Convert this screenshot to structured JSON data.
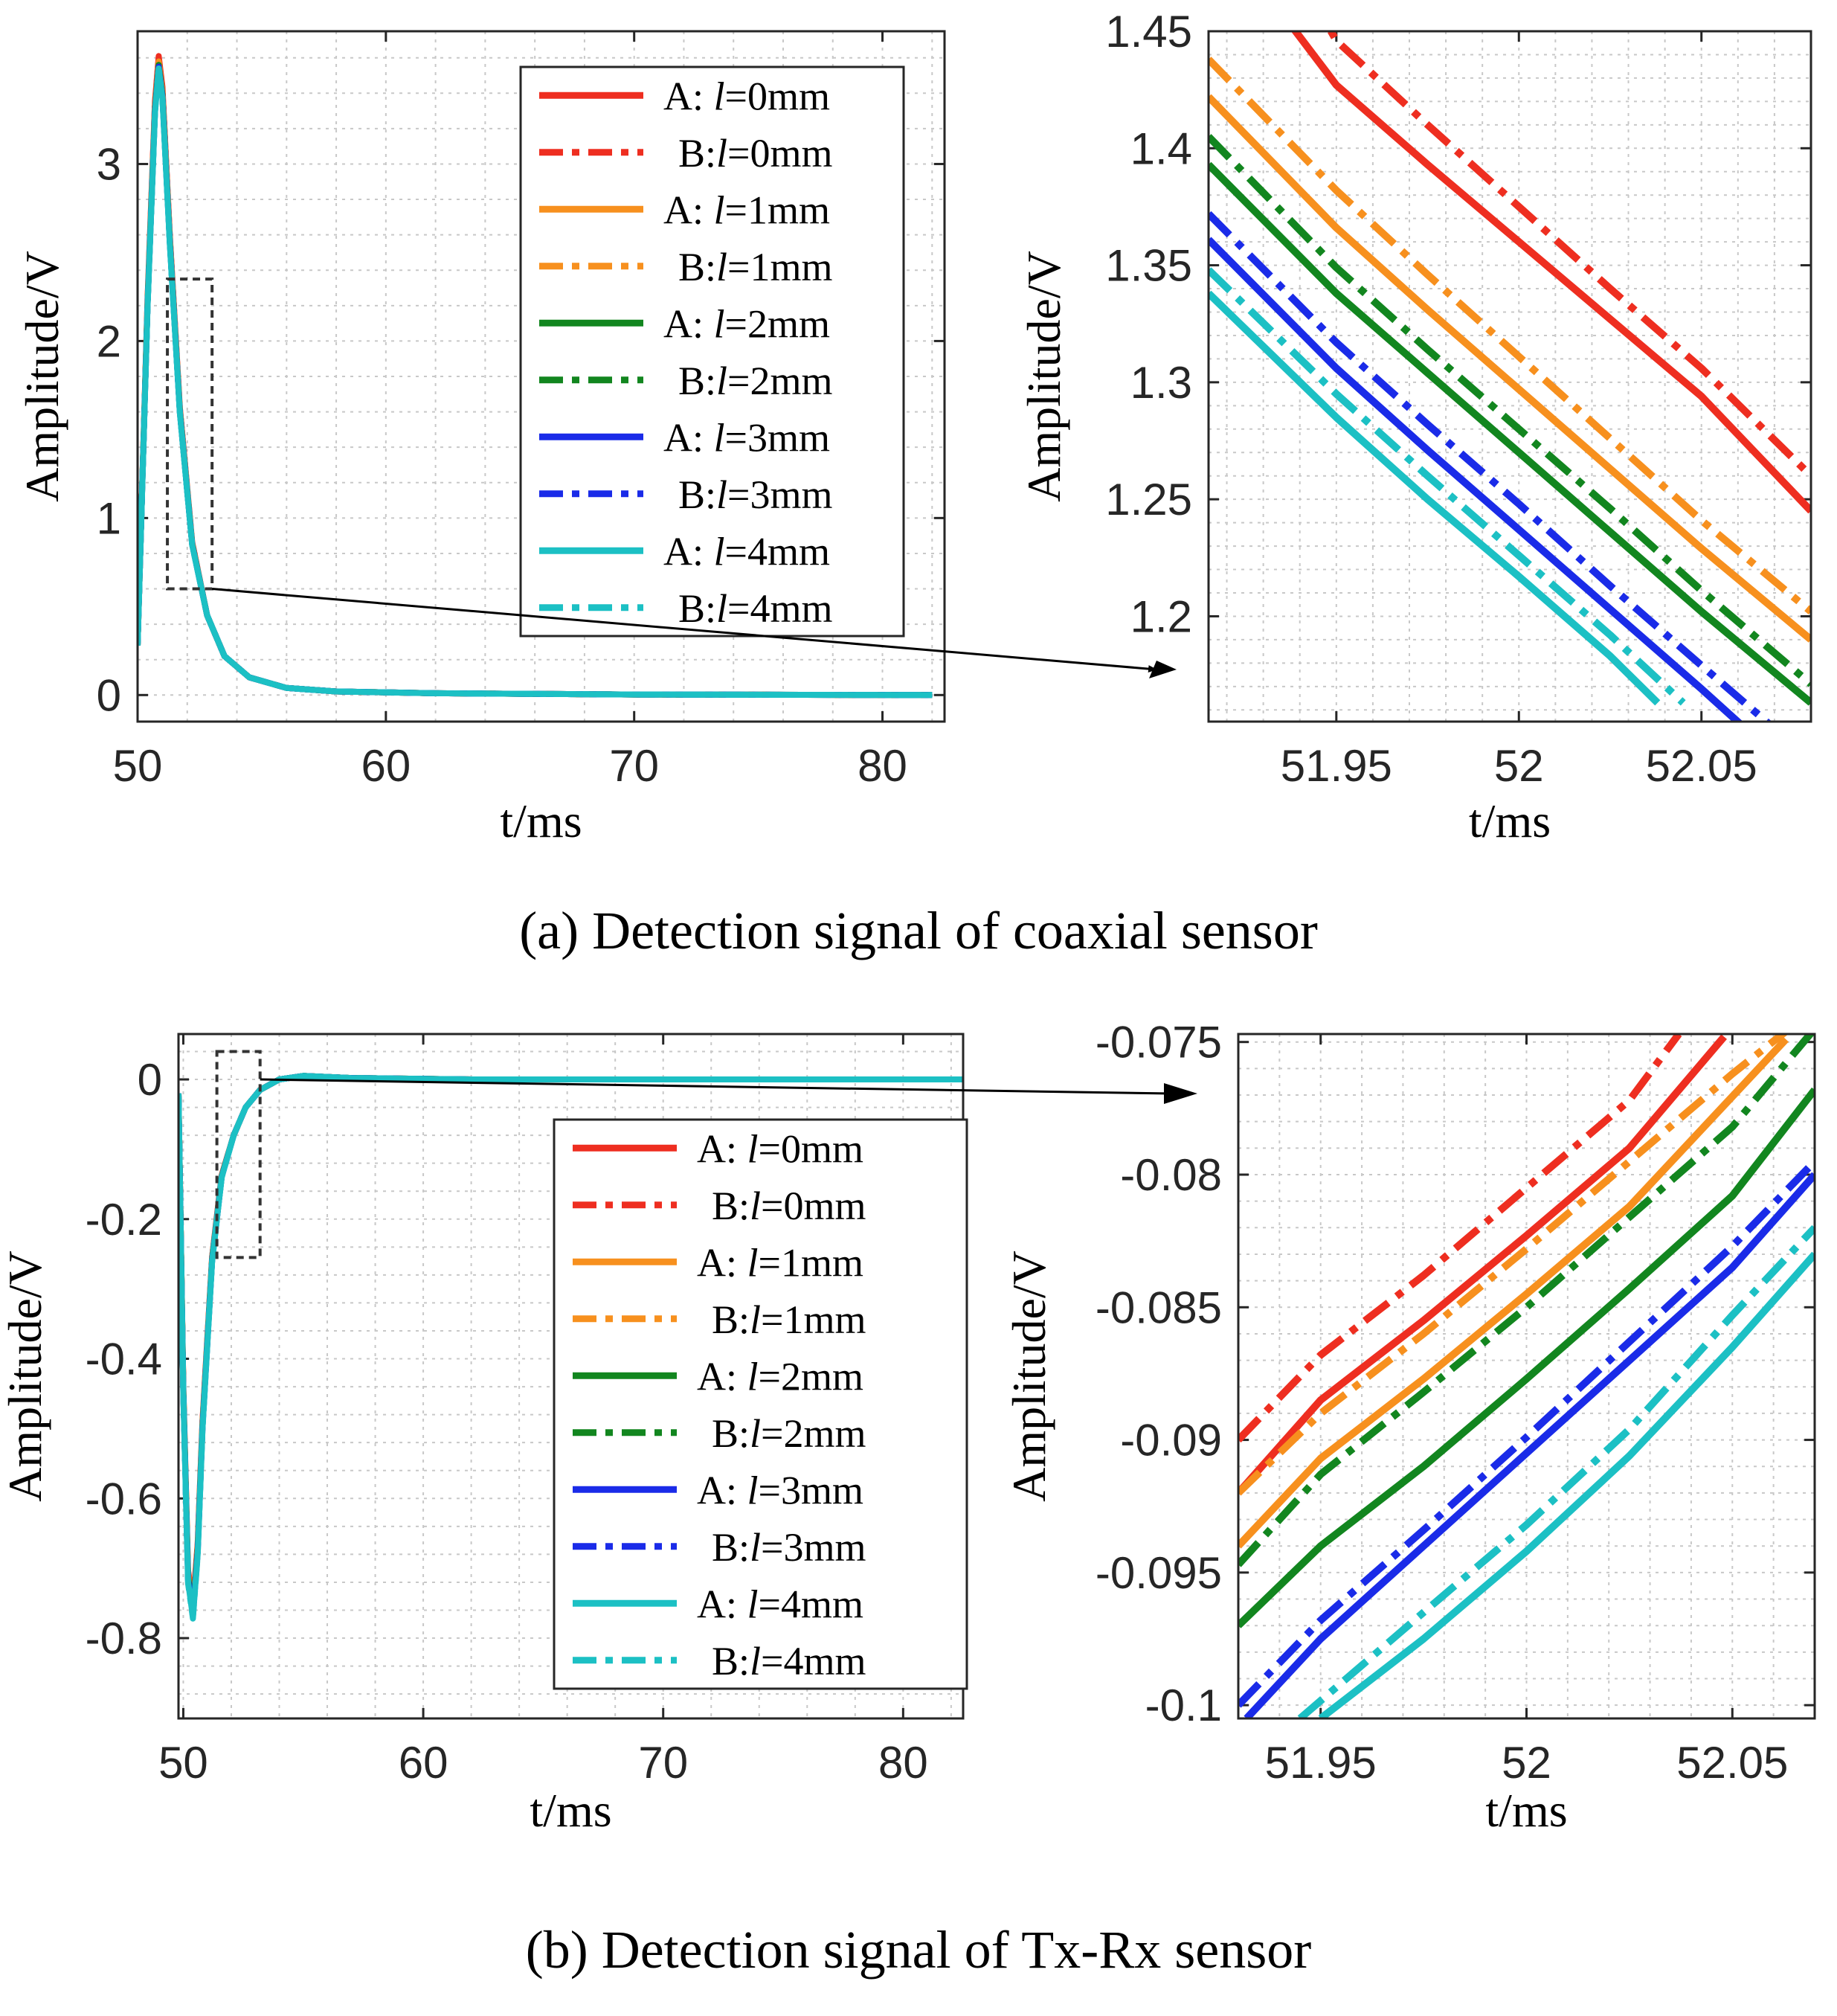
{
  "colors": {
    "l0": "#ee2e20",
    "l1": "#f7901e",
    "l2": "#12861f",
    "l3": "#1a2be8",
    "l4": "#1cc0c4"
  },
  "captions": {
    "a": "(a) Detection signal of coaxial sensor",
    "b": "(b) Detection signal of Tx-Rx sensor"
  },
  "legend": {
    "labels": [
      "A: l=0mm",
      "B:l=0mm",
      "A: l=1mm",
      "B:l=1mm",
      "A: l=2mm",
      "B:l=2mm",
      "A: l=3mm",
      "B:l=3mm",
      "A: l=4mm",
      "B:l=4mm"
    ],
    "prefixes": [
      "A: ",
      "B:",
      "A: ",
      "B:",
      "A: ",
      "B:",
      "A: ",
      "B:",
      "A: ",
      "B:"
    ],
    "vars": [
      "l",
      "l",
      "l",
      "l",
      "l",
      "l",
      "l",
      "l",
      "l",
      "l"
    ],
    "suffixes": [
      "=0mm",
      "=0mm",
      "=1mm",
      "=1mm",
      "=2mm",
      "=2mm",
      "=3mm",
      "=3mm",
      "=4mm",
      "=4mm"
    ]
  },
  "chart_data": [
    {
      "id": "a-main",
      "type": "line",
      "xlabel": "t/ms",
      "ylabel": "Amplitude/V",
      "xlim": [
        50,
        82.5
      ],
      "ylim": [
        -0.15,
        3.75
      ],
      "xticks": [
        50,
        60,
        70,
        80
      ],
      "yticks": [
        0,
        1,
        2,
        3
      ],
      "xtick_labels": [
        "50",
        "60",
        "70",
        "80"
      ],
      "ytick_labels": [
        "0",
        "1",
        "2",
        "3"
      ],
      "grid": true,
      "legend": "top-right",
      "zoom_box": {
        "x": [
          51.2,
          53.0
        ],
        "y": [
          0.6,
          2.35
        ]
      },
      "series_shape": {
        "x": [
          50.0,
          50.4,
          50.7,
          50.85,
          51.0,
          51.3,
          51.7,
          52.2,
          52.8,
          53.5,
          54.5,
          56,
          58,
          62,
          70,
          82
        ],
        "y": [
          0.28,
          2.2,
          3.3,
          3.55,
          3.38,
          2.55,
          1.6,
          0.85,
          0.45,
          0.22,
          0.1,
          0.04,
          0.02,
          0.01,
          0.003,
          0.0
        ]
      },
      "series": [
        {
          "name": "A: l=0mm",
          "peak": 3.61
        },
        {
          "name": "B:l=0mm",
          "peak": 3.6
        },
        {
          "name": "A: l=1mm",
          "peak": 3.58
        },
        {
          "name": "B:l=1mm",
          "peak": 3.57
        },
        {
          "name": "A: l=2mm",
          "peak": 3.56
        },
        {
          "name": "B:l=2mm",
          "peak": 3.56
        },
        {
          "name": "A: l=3mm",
          "peak": 3.55
        },
        {
          "name": "B:l=3mm",
          "peak": 3.55
        },
        {
          "name": "A: l=4mm",
          "peak": 3.54
        },
        {
          "name": "B:l=4mm",
          "peak": 3.54
        }
      ]
    },
    {
      "id": "a-zoom",
      "type": "line",
      "xlabel": "t/ms",
      "ylabel": "Amplitude/V",
      "xlim": [
        51.915,
        52.08
      ],
      "ylim": [
        1.155,
        1.45
      ],
      "xticks": [
        51.95,
        52,
        52.05
      ],
      "yticks": [
        1.2,
        1.25,
        1.3,
        1.35,
        1.4,
        1.45
      ],
      "xtick_labels": [
        "51.95",
        "52",
        "52.05"
      ],
      "ytick_labels": [
        "1.2",
        "1.25",
        "1.3",
        "1.35",
        "1.4",
        "1.45"
      ],
      "grid": true,
      "series": [
        {
          "name": "A: l=0mm",
          "x": [
            51.933,
            51.95,
            51.975,
            52.0,
            52.025,
            52.05,
            52.08
          ],
          "y": [
            1.462,
            1.427,
            1.393,
            1.36,
            1.327,
            1.294,
            1.245
          ]
        },
        {
          "name": "B:l=0mm",
          "x": [
            51.943,
            51.95,
            51.975,
            52.0,
            52.025,
            52.05,
            52.08
          ],
          "y": [
            1.465,
            1.446,
            1.41,
            1.375,
            1.34,
            1.306,
            1.26
          ]
        },
        {
          "name": "A: l=1mm",
          "x": [
            51.915,
            51.95,
            51.975,
            52.0,
            52.025,
            52.05,
            52.08
          ],
          "y": [
            1.422,
            1.366,
            1.331,
            1.297,
            1.263,
            1.229,
            1.19
          ]
        },
        {
          "name": "B:l=1mm",
          "x": [
            51.915,
            51.95,
            51.975,
            52.0,
            52.025,
            52.05,
            52.08
          ],
          "y": [
            1.438,
            1.382,
            1.346,
            1.311,
            1.276,
            1.241,
            1.202
          ]
        },
        {
          "name": "A: l=2mm",
          "x": [
            51.915,
            51.95,
            51.975,
            52.0,
            52.025,
            52.05,
            52.08
          ],
          "y": [
            1.393,
            1.338,
            1.304,
            1.27,
            1.236,
            1.202,
            1.163
          ]
        },
        {
          "name": "B:l=2mm",
          "x": [
            51.915,
            51.95,
            51.975,
            52.0,
            52.025,
            52.05,
            52.08
          ],
          "y": [
            1.405,
            1.349,
            1.314,
            1.28,
            1.246,
            1.211,
            1.171
          ]
        },
        {
          "name": "A: l=3mm",
          "x": [
            51.915,
            51.95,
            51.975,
            52.0,
            52.025,
            52.05,
            52.067
          ],
          "y": [
            1.361,
            1.306,
            1.271,
            1.237,
            1.203,
            1.169,
            1.145
          ]
        },
        {
          "name": "B:l=3mm",
          "x": [
            51.915,
            51.95,
            51.975,
            52.0,
            52.025,
            52.05,
            52.07
          ],
          "y": [
            1.372,
            1.317,
            1.282,
            1.248,
            1.213,
            1.179,
            1.152
          ]
        },
        {
          "name": "A: l=4mm",
          "x": [
            51.915,
            51.95,
            51.975,
            52.0,
            52.025,
            52.038
          ],
          "y": [
            1.338,
            1.285,
            1.25,
            1.217,
            1.183,
            1.163
          ]
        },
        {
          "name": "B:l=4mm",
          "x": [
            51.915,
            51.95,
            51.975,
            52.0,
            52.025,
            52.045
          ],
          "y": [
            1.348,
            1.295,
            1.26,
            1.226,
            1.192,
            1.163
          ]
        }
      ]
    },
    {
      "id": "b-main",
      "type": "line",
      "xlabel": "t/ms",
      "ylabel": "Amplitude/V",
      "xlim": [
        49.8,
        82.5
      ],
      "ylim": [
        -0.915,
        0.065
      ],
      "xticks": [
        50,
        60,
        70,
        80
      ],
      "yticks": [
        -0.8,
        -0.6,
        -0.4,
        -0.2,
        0
      ],
      "xtick_labels": [
        "50",
        "60",
        "70",
        "80"
      ],
      "ytick_labels": [
        "-0.8",
        "-0.6",
        "-0.4",
        "-0.2",
        "0"
      ],
      "grid": true,
      "legend": "right",
      "zoom_box": {
        "x": [
          51.4,
          53.2
        ],
        "y": [
          -0.255,
          0.04
        ]
      },
      "series_shape": {
        "x": [
          49.8,
          50.0,
          50.2,
          50.4,
          50.6,
          50.8,
          51.2,
          51.6,
          52.1,
          52.6,
          53.2,
          54.0,
          55.0,
          57.0,
          62.0,
          70.0,
          82.5
        ],
        "y": [
          -0.02,
          -0.45,
          -0.72,
          -0.77,
          -0.68,
          -0.5,
          -0.26,
          -0.14,
          -0.08,
          -0.04,
          -0.015,
          0.0,
          0.005,
          0.002,
          0.0,
          0.0,
          0.0
        ]
      },
      "series": [
        {
          "name": "A: l=0mm",
          "trough": -0.752
        },
        {
          "name": "B:l=0mm",
          "trough": -0.755
        },
        {
          "name": "A: l=1mm",
          "trough": -0.758
        },
        {
          "name": "B:l=1mm",
          "trough": -0.76
        },
        {
          "name": "A: l=2mm",
          "trough": -0.762
        },
        {
          "name": "B:l=2mm",
          "trough": -0.764
        },
        {
          "name": "A: l=3mm",
          "trough": -0.766
        },
        {
          "name": "B:l=3mm",
          "trough": -0.768
        },
        {
          "name": "A: l=4mm",
          "trough": -0.77
        },
        {
          "name": "B:l=4mm",
          "trough": -0.772
        }
      ]
    },
    {
      "id": "b-zoom",
      "type": "line",
      "xlabel": "t/ms",
      "ylabel": "Amplitude/V",
      "xlim": [
        51.93,
        52.07
      ],
      "ylim": [
        -0.1005,
        -0.0747
      ],
      "xticks": [
        51.95,
        52,
        52.05
      ],
      "yticks": [
        -0.1,
        -0.095,
        -0.09,
        -0.085,
        -0.08,
        -0.075
      ],
      "xtick_labels": [
        "51.95",
        "52",
        "52.05"
      ],
      "ytick_labels": [
        "-0.1",
        "-0.095",
        "-0.09",
        "-0.085",
        "-0.08",
        "-0.075"
      ],
      "grid": true,
      "series": [
        {
          "name": "A: l=0mm",
          "x": [
            51.93,
            51.95,
            51.975,
            52.0,
            52.025,
            52.048
          ],
          "y": [
            -0.092,
            -0.0885,
            -0.0855,
            -0.0823,
            -0.079,
            -0.0748
          ]
        },
        {
          "name": "B:l=0mm",
          "x": [
            51.93,
            51.95,
            51.975,
            52.0,
            52.025,
            52.037
          ],
          "y": [
            -0.09,
            -0.0868,
            -0.0838,
            -0.0805,
            -0.0772,
            -0.0747
          ]
        },
        {
          "name": "A: l=1mm",
          "x": [
            51.93,
            51.95,
            51.975,
            52.0,
            52.025,
            52.063
          ],
          "y": [
            -0.094,
            -0.0907,
            -0.0877,
            -0.0845,
            -0.0812,
            -0.0749
          ]
        },
        {
          "name": "B:l=1mm",
          "x": [
            51.93,
            51.95,
            51.975,
            52.0,
            52.025,
            52.05,
            52.063
          ],
          "y": [
            -0.092,
            -0.089,
            -0.086,
            -0.0828,
            -0.0795,
            -0.0762,
            -0.0746
          ]
        },
        {
          "name": "A: l=2mm",
          "x": [
            51.93,
            51.95,
            51.975,
            52.0,
            52.025,
            52.05,
            52.07
          ],
          "y": [
            -0.097,
            -0.094,
            -0.091,
            -0.0877,
            -0.0843,
            -0.0808,
            -0.0768
          ]
        },
        {
          "name": "B:l=2mm",
          "x": [
            51.93,
            51.95,
            51.975,
            52.0,
            52.025,
            52.05,
            52.07
          ],
          "y": [
            -0.0947,
            -0.0913,
            -0.0882,
            -0.085,
            -0.0816,
            -0.0782,
            -0.0745
          ]
        },
        {
          "name": "A: l=3mm",
          "x": [
            51.932,
            51.95,
            51.975,
            52.0,
            52.025,
            52.05,
            52.07
          ],
          "y": [
            -0.1005,
            -0.0975,
            -0.094,
            -0.0905,
            -0.087,
            -0.0835,
            -0.08
          ]
        },
        {
          "name": "B:l=3mm",
          "x": [
            51.93,
            51.95,
            51.975,
            52.0,
            52.025,
            52.05,
            52.07
          ],
          "y": [
            -0.1,
            -0.0968,
            -0.0934,
            -0.0899,
            -0.0863,
            -0.0827,
            -0.0795
          ]
        },
        {
          "name": "A: l=4mm",
          "x": [
            51.95,
            51.975,
            52.0,
            52.025,
            52.05,
            52.07
          ],
          "y": [
            -0.1005,
            -0.0975,
            -0.0942,
            -0.0906,
            -0.0865,
            -0.083
          ]
        },
        {
          "name": "B:l=4mm",
          "x": [
            51.945,
            51.975,
            52.0,
            52.025,
            52.05,
            52.07
          ],
          "y": [
            -0.1005,
            -0.0965,
            -0.0932,
            -0.0896,
            -0.0853,
            -0.082
          ]
        }
      ]
    }
  ]
}
